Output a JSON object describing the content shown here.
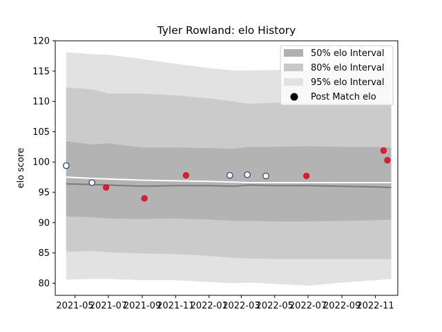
{
  "chart_data": {
    "type": "line",
    "title": "Tyler Rowland: elo History",
    "xlabel": "",
    "ylabel": "elo score",
    "ylim": [
      78,
      120
    ],
    "xlim": [
      "2021-03-26",
      "2022-12-12"
    ],
    "grid": false,
    "legend_position": "top-right",
    "x_ticks": [
      "2021-05",
      "2021-07",
      "2021-09",
      "2021-11",
      "2022-01",
      "2022-03",
      "2022-05",
      "2022-07",
      "2022-09",
      "2022-11"
    ],
    "y_ticks": [
      80,
      85,
      90,
      95,
      100,
      105,
      110,
      115,
      120
    ],
    "legend": [
      {
        "label": "50% elo Interval",
        "swatch": "#b0b0b0"
      },
      {
        "label": "80% elo Interval",
        "swatch": "#c8c8c8"
      },
      {
        "label": "95% elo Interval",
        "swatch": "#e2e2e2"
      },
      {
        "label": "Post Match elo",
        "marker": "circle"
      }
    ],
    "colors": {
      "band_95": "#e2e2e2",
      "band_80": "#cbcbcb",
      "band_50": "#b3b3b3",
      "median_line": "#7a7a7a",
      "mean_line": "#ffffff",
      "open_point_edge": "#1f3f7a",
      "red_point": "#e8192c"
    },
    "series": [
      {
        "role": "band_95",
        "x": [
          "2021-04-15",
          "2021-06-01",
          "2021-07-01",
          "2021-09-01",
          "2021-11-01",
          "2022-01-01",
          "2022-02-15",
          "2022-03-15",
          "2022-05-01",
          "2022-07-01",
          "2022-09-01",
          "2022-11-01",
          "2022-11-30"
        ],
        "upper": [
          118.1,
          117.8,
          117.7,
          117.0,
          116.2,
          115.5,
          115.1,
          115.1,
          115.2,
          115.2,
          115.2,
          115.2,
          115.2
        ],
        "lower": [
          80.6,
          80.7,
          80.7,
          80.5,
          80.5,
          80.2,
          80.0,
          80.1,
          79.9,
          79.6,
          80.1,
          80.5,
          80.7
        ]
      },
      {
        "role": "band_80",
        "x": [
          "2021-04-15",
          "2021-06-01",
          "2021-07-01",
          "2021-09-01",
          "2021-11-01",
          "2022-01-01",
          "2022-02-15",
          "2022-03-15",
          "2022-05-01",
          "2022-07-01",
          "2022-09-01",
          "2022-11-01",
          "2022-11-30"
        ],
        "upper": [
          112.3,
          112.0,
          111.3,
          111.3,
          111.0,
          110.5,
          110.0,
          109.6,
          109.8,
          109.8,
          109.8,
          109.8,
          109.8
        ],
        "lower": [
          85.2,
          85.3,
          85.1,
          84.9,
          84.8,
          84.5,
          84.2,
          84.1,
          84.0,
          84.0,
          84.0,
          84.0,
          84.0
        ]
      },
      {
        "role": "band_50",
        "x": [
          "2021-04-15",
          "2021-06-01",
          "2021-07-01",
          "2021-09-01",
          "2021-11-01",
          "2022-01-01",
          "2022-02-15",
          "2022-03-15",
          "2022-05-01",
          "2022-07-01",
          "2022-09-01",
          "2022-11-01",
          "2022-11-30"
        ],
        "upper": [
          103.4,
          102.9,
          103.1,
          102.4,
          102.4,
          102.3,
          102.2,
          102.5,
          102.5,
          102.6,
          102.5,
          102.5,
          102.4
        ],
        "lower": [
          91.0,
          90.9,
          90.7,
          90.6,
          90.7,
          90.5,
          90.3,
          90.3,
          90.2,
          90.2,
          90.3,
          90.4,
          90.5
        ]
      },
      {
        "role": "median_line",
        "x": [
          "2021-04-15",
          "2021-06-01",
          "2021-07-01",
          "2021-09-01",
          "2021-11-01",
          "2022-01-01",
          "2022-02-15",
          "2022-03-15",
          "2022-05-01",
          "2022-07-01",
          "2022-09-01",
          "2022-11-01",
          "2022-11-30"
        ],
        "values": [
          96.4,
          96.3,
          96.2,
          96.0,
          96.1,
          96.1,
          96.0,
          96.2,
          96.1,
          96.1,
          96.0,
          95.9,
          95.8
        ]
      },
      {
        "role": "mean_line",
        "x": [
          "2021-04-15",
          "2021-06-01",
          "2021-07-01",
          "2021-09-01",
          "2021-11-01",
          "2022-01-01",
          "2022-02-15",
          "2022-03-15",
          "2022-05-01",
          "2022-07-01",
          "2022-09-01",
          "2022-11-01",
          "2022-11-30"
        ],
        "values": [
          97.5,
          97.3,
          97.2,
          97.0,
          96.9,
          96.8,
          96.7,
          96.6,
          96.6,
          96.6,
          96.6,
          96.6,
          96.6
        ]
      },
      {
        "role": "open_points",
        "x": [
          "2021-04-15",
          "2021-06-01",
          "2022-02-08",
          "2022-03-12",
          "2022-04-15"
        ],
        "values": [
          99.4,
          96.6,
          97.8,
          97.9,
          97.7
        ]
      },
      {
        "name": "Post Match elo",
        "role": "red_points",
        "x": [
          "2021-06-27",
          "2021-09-05",
          "2021-11-20",
          "2022-06-28",
          "2022-11-16",
          "2022-11-23"
        ],
        "values": [
          95.8,
          94.0,
          97.8,
          97.7,
          101.9,
          100.3
        ]
      }
    ]
  }
}
